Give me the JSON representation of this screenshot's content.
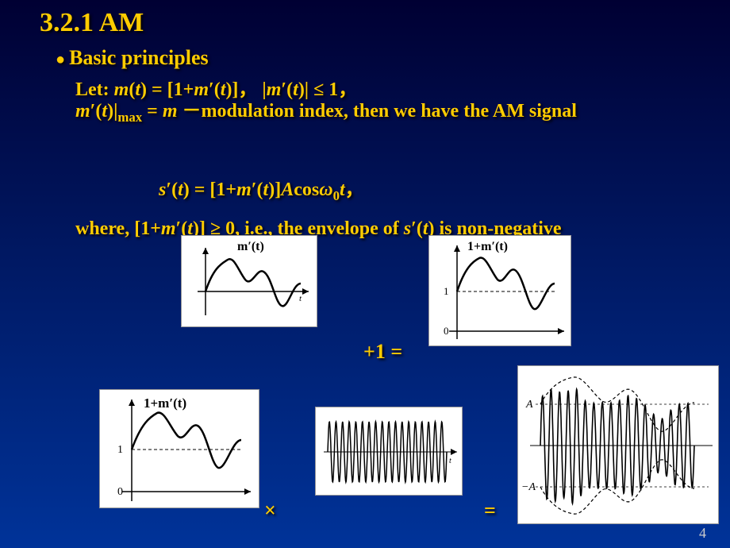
{
  "title": "3.2.1 AM",
  "bullet": "Basic principles",
  "line1": "Let: <span class='it'>m</span>(<span class='it'>t</span>) = [1+<span class='it'>m</span>′(<span class='it'>t</span>)]，  |<span class='it'>m</span>′(<span class='it'>t</span>)| ≤ 1，",
  "line2": "<span class='it'>m</span>′(<span class='it'>t</span>)|<span class='sub'>max</span> = <span class='it'>m</span>  －modulation index, then we have the AM signal",
  "line3": "<span class='it'>s</span>′(<span class='it'>t</span>) = [1+<span class='it'>m</span>′(<span class='it'>t</span>)]<span class='it'>A</span>cos<span class='it'>ω</span><span class='sub'>0</span><span class='it'>t</span>，",
  "line4": "where, [1+<span class='it'>m</span>′(<span class='it'>t</span>)] ≥ 0, i.e., the envelope of <span class='it'>s</span>′(<span class='it'>t</span>)  is non-negative",
  "op_plus1": "+1 =",
  "op_times": "×",
  "op_eq": "=",
  "pagenum": "4",
  "fig1": {
    "label": "m′(t)",
    "wave_color": "#000000",
    "axis_color": "#000000",
    "bg": "#ffffff"
  },
  "fig2": {
    "label": "1+m′(t)",
    "baseline_label_1": "1",
    "baseline_label_0": "0",
    "wave_color": "#000000"
  },
  "fig3": {
    "label": "1+m′(t)",
    "baseline_label_1": "1",
    "baseline_label_0": "0",
    "wave_color": "#000000"
  },
  "fig4": {
    "carrier_cycles": 18,
    "wave_color": "#000000"
  },
  "fig5": {
    "label_A": "A",
    "label_mA": "−A",
    "carrier_cycles": 18,
    "wave_color": "#000000"
  }
}
